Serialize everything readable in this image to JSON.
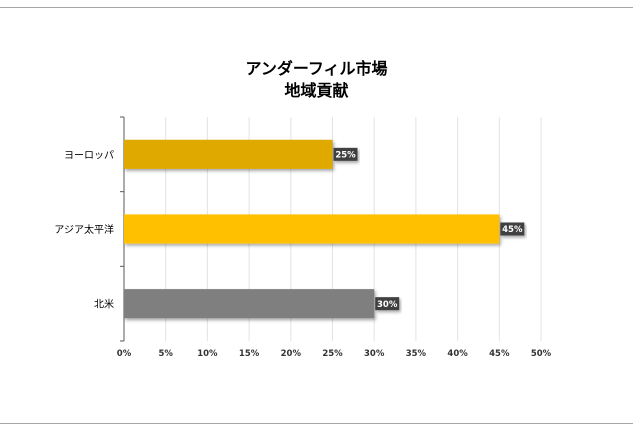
{
  "chart_data": {
    "type": "bar",
    "orientation": "horizontal",
    "title_lines": [
      "アンダーフィル市場",
      "地域貢献"
    ],
    "categories": [
      "ヨーロッパ",
      "アジア太平洋",
      "北米"
    ],
    "values": [
      25,
      45,
      30
    ],
    "value_labels": [
      "25%",
      "45%",
      "30%"
    ],
    "bar_colors": [
      "#e0a900",
      "#ffc000",
      "#7f7f7f"
    ],
    "x_ticks": [
      0,
      5,
      10,
      15,
      20,
      25,
      30,
      35,
      40,
      45,
      50
    ],
    "x_tick_labels": [
      "0%",
      "5%",
      "10%",
      "15%",
      "20%",
      "25%",
      "30%",
      "35%",
      "40%",
      "45%",
      "50%"
    ],
    "xlim": [
      0,
      50
    ],
    "grid": true,
    "legend": "none",
    "xlabel": "",
    "ylabel": ""
  }
}
